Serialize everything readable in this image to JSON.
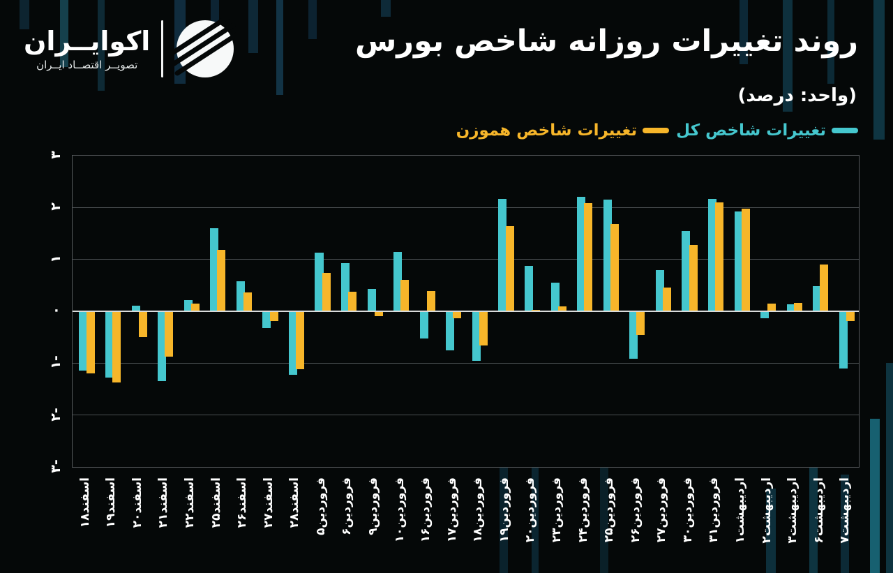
{
  "brand": {
    "name": "اکوایــران",
    "tagline": "تصویــر اقتصــاد ایــران"
  },
  "header": {
    "title": "روند تغییرات روزانه شاخص بورس",
    "unit_note": "(واحد: درصد)"
  },
  "legend": [
    {
      "label": "تغییرات شاخص کل",
      "color": "#45c7ce"
    },
    {
      "label": "تغییرات شاخص هموزن",
      "color": "#f7b62a"
    }
  ],
  "colors": {
    "background": "#050808",
    "title_text": "#ffffff",
    "axis_text": "#ffffff",
    "gridline": "#4b5052",
    "zero_line": "#d9dbdb",
    "plot_border": "#565a5c",
    "total_index": "#45c7ce",
    "equal_weight_index": "#f7b62a"
  },
  "chart_data": {
    "type": "bar",
    "title": "روند تغییرات روزانه شاخص بورس",
    "unit": "درصد",
    "ylim": [
      -3,
      3
    ],
    "yticks": [
      "۳",
      "۲",
      "۱",
      "۰",
      "-۱",
      "-۲",
      "-۳"
    ],
    "ytick_values": [
      3,
      2,
      1,
      0,
      -1,
      -2,
      -3
    ],
    "grid": true,
    "legend_position": "top-right",
    "categories": [
      "اسفند۱۸",
      "اسفند۱۹",
      "اسفند۲۰",
      "اسفند۲۱",
      "اسفند۲۲",
      "اسفند۲۵",
      "اسفند۲۶",
      "اسفند۲۷",
      "اسفند۲۸",
      "فروردین۵",
      "فروردین۶",
      "فروردین۹",
      "فروردین۱۰",
      "فروردین۱۶",
      "فروردین۱۷",
      "فروردین۱۸",
      "فروردین۱۹",
      "فروردین۲۰",
      "فروردین۲۳",
      "فروردین۲۴",
      "فروردین۲۵",
      "فروردین۲۶",
      "فروردین۲۷",
      "فروردین۳۰",
      "فروردین۳۱",
      "اردیبهشت۱",
      "اردیبهشت۲",
      "اردیبهشت۳",
      "اردیبهشت۶",
      "اردیبهشت۷"
    ],
    "series": [
      {
        "name": "تغییرات شاخص کل",
        "color": "#45c7ce",
        "values": [
          -1.15,
          -1.28,
          0.11,
          -1.35,
          0.22,
          1.6,
          0.58,
          -0.32,
          -1.22,
          1.13,
          0.93,
          0.43,
          1.15,
          -0.52,
          -0.75,
          -0.95,
          2.17,
          0.87,
          0.55,
          2.2,
          2.15,
          -0.91,
          0.8,
          1.55,
          2.17,
          1.93,
          -0.14,
          0.13,
          0.48,
          -1.1
        ]
      },
      {
        "name": "تغییرات شاخص هموزن",
        "color": "#f7b62a",
        "values": [
          -1.2,
          -1.37,
          -0.5,
          -0.88,
          0.15,
          1.18,
          0.36,
          -0.19,
          -1.12,
          0.74,
          0.38,
          -0.1,
          0.61,
          0.39,
          -0.14,
          -0.66,
          1.64,
          0.03,
          0.1,
          2.08,
          1.68,
          -0.46,
          0.46,
          1.28,
          2.1,
          1.98,
          0.15,
          0.16,
          0.9,
          -0.19
        ]
      }
    ]
  }
}
